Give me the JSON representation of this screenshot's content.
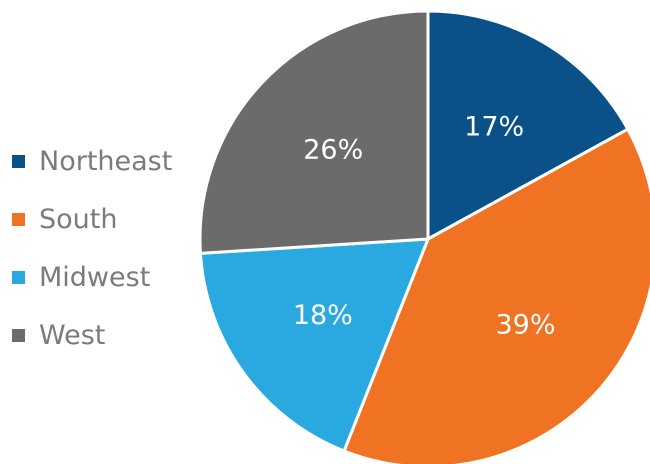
{
  "chart_data": {
    "type": "pie",
    "categories": [
      "Northeast",
      "South",
      "Midwest",
      "West"
    ],
    "values": [
      17,
      39,
      18,
      26
    ],
    "value_labels": [
      "17%",
      "39%",
      "18%",
      "26%"
    ],
    "colors": [
      "#0b5189",
      "#f07323",
      "#2aa9e0",
      "#6b6b6b"
    ],
    "legend_position": "left",
    "start_angle_deg": 0,
    "direction": "clockwise"
  }
}
